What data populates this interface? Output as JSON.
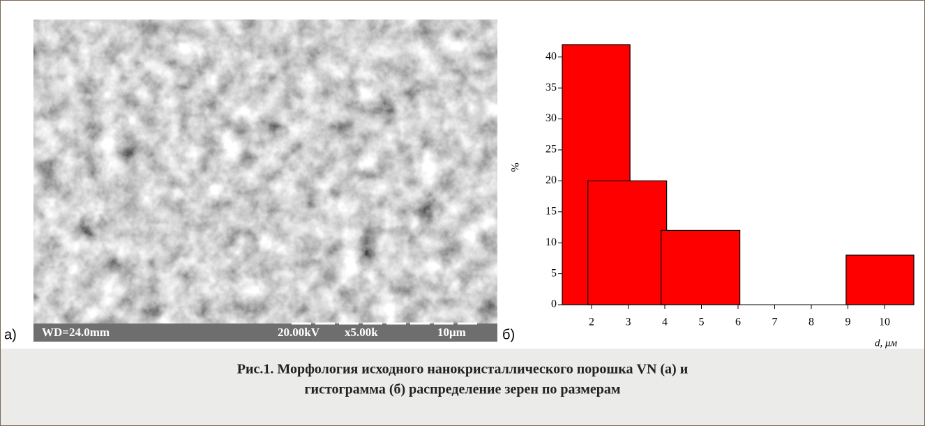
{
  "figure": {
    "label_a": "а)",
    "label_b": "б)",
    "image": {
      "labels": [
        "WD=24.0mm",
        "20.00kV",
        "x5.00k",
        "10μm"
      ]
    },
    "caption": [
      "Рис.1. Морфология исходного нанокристаллического порошка VN (а) и",
      "гистограмма (б) распределение зерен по размерам"
    ]
  },
  "chart_data": {
    "type": "bar",
    "y_label": "%",
    "x_label": "d, μм",
    "x_start": [
      1.2,
      1.9,
      3.9,
      8.95
    ],
    "x_end": [
      3.05,
      4.05,
      6.05,
      10.8
    ],
    "values": [
      42,
      20,
      12,
      8
    ],
    "color": "#ff0000",
    "xlim": [
      1.2,
      10.8
    ],
    "xticks": [
      2,
      3,
      4,
      5,
      6,
      7,
      8,
      9,
      10
    ],
    "ylim": [
      0,
      42
    ],
    "yticks": [
      0,
      5,
      10,
      15,
      20,
      25,
      30,
      35,
      40
    ],
    "grid": false
  }
}
